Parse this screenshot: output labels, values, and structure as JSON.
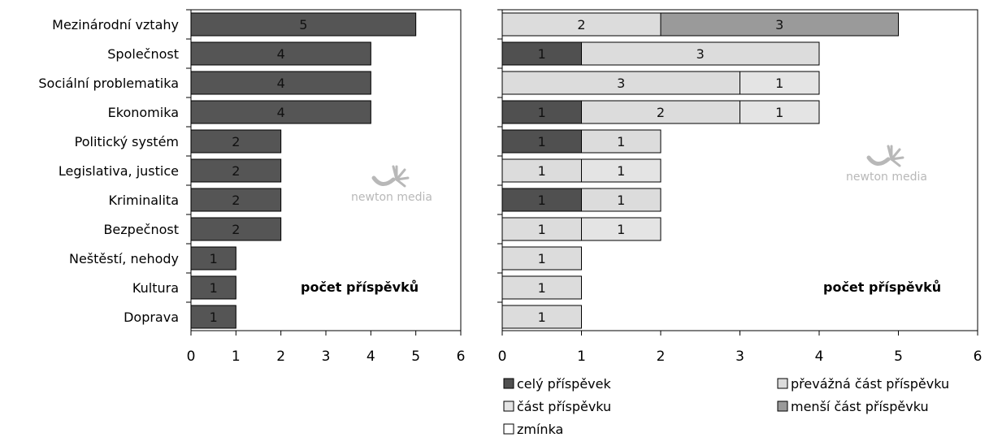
{
  "colors": {
    "frame": "#000000",
    "watermark": "#b8b8b8"
  },
  "watermark_text": "newton media",
  "chart_data": [
    {
      "type": "bar",
      "orientation": "horizontal",
      "categories": [
        "Mezinárodní vztahy",
        "Společnost",
        "Sociální problematika",
        "Ekonomika",
        "Politický systém",
        "Legislativa, justice",
        "Kriminalita",
        "Bezpečnost",
        "Neštěstí, nehody",
        "Kultura",
        "Doprava"
      ],
      "values": [
        5,
        4,
        4,
        4,
        2,
        2,
        2,
        2,
        1,
        1,
        1
      ],
      "annotation": "počet příspěvků",
      "xlim": [
        0,
        6
      ],
      "xticks": [
        0,
        1,
        2,
        3,
        4,
        5,
        6
      ],
      "bar_color": "#555555",
      "grid": false
    },
    {
      "type": "bar",
      "orientation": "horizontal",
      "stacked": true,
      "categories": [
        "Mezinárodní vztahy",
        "Společnost",
        "Sociální problematika",
        "Ekonomika",
        "Politický systém",
        "Legislativa, justice",
        "Kriminalita",
        "Bezpečnost",
        "Neštěstí, nehody",
        "Kultura",
        "Doprava"
      ],
      "series": [
        {
          "name": "celý příspěvek",
          "color": "#505050",
          "values": [
            0,
            1,
            0,
            1,
            1,
            0,
            1,
            0,
            0,
            0,
            0
          ]
        },
        {
          "name": "převážná část příspěvku",
          "color": "#dcdcdc",
          "values": [
            2,
            3,
            3,
            2,
            1,
            1,
            1,
            1,
            1,
            1,
            1
          ]
        },
        {
          "name": "část příspěvku",
          "color": "#e4e4e4",
          "values": [
            0,
            0,
            1,
            1,
            0,
            1,
            0,
            1,
            0,
            0,
            0
          ]
        },
        {
          "name": "menší část příspěvku",
          "color": "#9a9a9a",
          "values": [
            3,
            0,
            0,
            0,
            0,
            0,
            0,
            0,
            0,
            0,
            0
          ]
        },
        {
          "name": "zmínka",
          "color": "#ffffff",
          "values": [
            0,
            0,
            0,
            0,
            0,
            0,
            0,
            0,
            0,
            0,
            0
          ]
        }
      ],
      "annotation": "počet příspěvků",
      "xlim": [
        0,
        6
      ],
      "xticks": [
        0,
        1,
        2,
        3,
        4,
        5,
        6
      ],
      "legend_position": "bottom",
      "grid": false
    }
  ]
}
